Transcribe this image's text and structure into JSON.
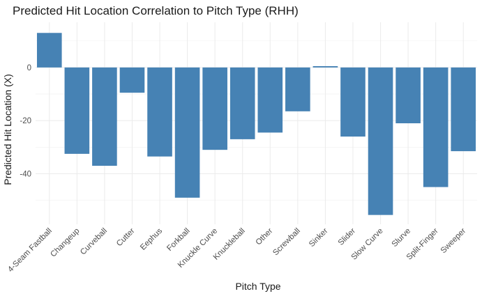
{
  "chart_data": {
    "type": "bar",
    "title": "Predicted Hit Location Correlation to Pitch Type (RHH)",
    "xlabel": "Pitch Type",
    "ylabel": "Predicted Hit Location (X)",
    "categories": [
      "4-Seam Fastball",
      "Changeup",
      "Curveball",
      "Cutter",
      "Eephus",
      "Forkball",
      "Knuckle Curve",
      "Knuckleball",
      "Other",
      "Screwball",
      "Sinker",
      "Slider",
      "Slow Curve",
      "Slurve",
      "Split-Finger",
      "Sweeper"
    ],
    "values": [
      13,
      -32.5,
      -37,
      -9.5,
      -33.5,
      -49,
      -31,
      -27,
      -24.5,
      -16.5,
      0.5,
      -26,
      -55.5,
      -21,
      -45,
      -31.5
    ],
    "ylim": [
      -59,
      17
    ],
    "yticks": [
      0,
      -20,
      -40
    ],
    "yticks_labels": [
      "0",
      "-20",
      "-40"
    ],
    "grid": true,
    "bar_color": "#4682B4",
    "legend": "none"
  }
}
